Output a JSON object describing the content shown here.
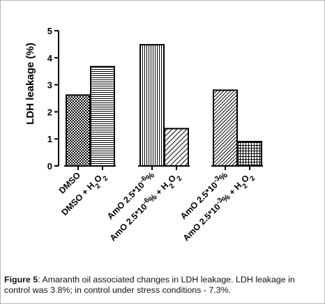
{
  "chart_data": {
    "type": "bar",
    "ylabel": "LDH leakage (%)",
    "ylim": [
      0,
      5
    ],
    "yticks": [
      "0",
      "1",
      "2",
      "3",
      "4",
      "5"
    ],
    "grid": false,
    "legend": "none",
    "categories": [
      "DMSO",
      "DMSO + H2O2",
      "AmO 2.5*10-6%",
      "AmO 2.5*10-6% + H2O2",
      "AmO 2.5*10-3%",
      "AmO 2.5*10-3% + H2O2"
    ],
    "values": [
      2.62,
      3.67,
      4.48,
      1.38,
      2.8,
      0.9
    ],
    "patterns": [
      "checker",
      "horizontal-lines",
      "vertical-lines",
      "diagonal-lines",
      "diagonal-lines-dense",
      "grid"
    ]
  },
  "caption": {
    "label": "Figure",
    "number": "5",
    "text": ": Amaranth oil associated changes in LDH leakage. LDH leakage in control was 3.8%; in control under stress conditions - 7.3%."
  }
}
